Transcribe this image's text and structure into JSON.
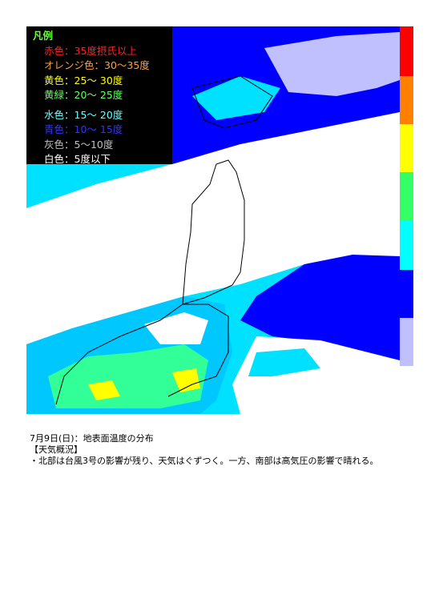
{
  "legend": {
    "title": "凡例",
    "items": [
      "赤色：35度摂氏以上",
      "オレンジ色：30～35度",
      "黄色：25～ 30度",
      "黄緑：20～ 25度",
      "水色：15～ 20度",
      "青色：10～ 15度",
      "灰色：5～10度",
      "白色：5度以下"
    ]
  },
  "caption": {
    "date_line": "7月9日(日)：地表面温度の分布",
    "heading": "【天気概況】",
    "summary": "・北部は台風3号の影響が残り、天気はぐずつく。一方、南部は高気圧の影響で晴れる。"
  }
}
